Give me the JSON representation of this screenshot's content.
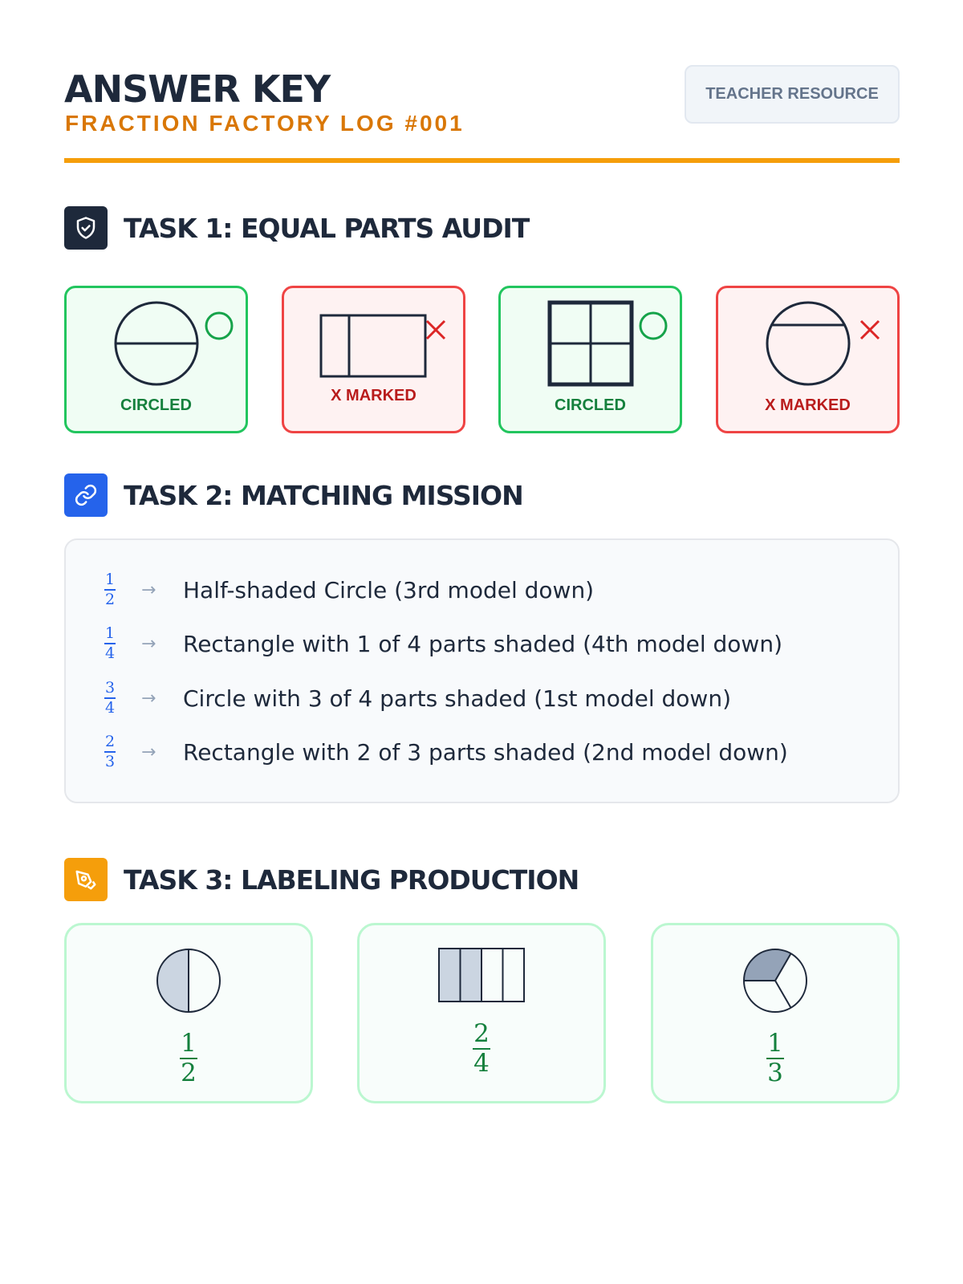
{
  "header": {
    "title": "ANSWER KEY",
    "subtitle": "FRACTION FACTORY LOG #001",
    "badge": "TEACHER RESOURCE"
  },
  "colors": {
    "accent": "#f59e0b",
    "correct": "#22c55e",
    "incorrect": "#ef4444",
    "link": "#2563eb",
    "dark": "#1e293b"
  },
  "task1": {
    "title": "TASK 1: EQUAL PARTS AUDIT",
    "icon": "shield-check-icon",
    "cards": [
      {
        "shape": "circle split in half",
        "status": "correct",
        "label": "CIRCLED"
      },
      {
        "shape": "rectangle split unevenly",
        "status": "incorrect",
        "label": "X MARKED"
      },
      {
        "shape": "square split in 4 equal parts",
        "status": "correct",
        "label": "CIRCLED"
      },
      {
        "shape": "circle split unevenly",
        "status": "incorrect",
        "label": "X MARKED"
      }
    ]
  },
  "task2": {
    "title": "TASK 2: MATCHING MISSION",
    "icon": "link-icon",
    "arrow": "→",
    "rows": [
      {
        "num": "1",
        "den": "2",
        "text": "Half-shaded Circle (3rd model down)"
      },
      {
        "num": "1",
        "den": "4",
        "text": "Rectangle with 1 of 4 parts shaded (4th model down)"
      },
      {
        "num": "3",
        "den": "4",
        "text": "Circle with 3 of 4 parts shaded (1st model down)"
      },
      {
        "num": "2",
        "den": "3",
        "text": "Rectangle with 2 of 3 parts shaded (2nd model down)"
      }
    ]
  },
  "task3": {
    "title": "TASK 3: LABELING PRODUCTION",
    "icon": "pen-tool-icon",
    "cards": [
      {
        "shape": "circle",
        "num": "1",
        "den": "2"
      },
      {
        "shape": "rectangle",
        "num": "2",
        "den": "4"
      },
      {
        "shape": "circle",
        "num": "1",
        "den": "3"
      }
    ]
  }
}
